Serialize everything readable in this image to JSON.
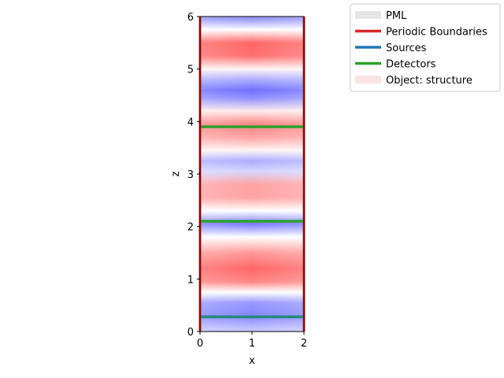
{
  "chart_data": {
    "type": "heatmap",
    "title": "",
    "xlabel": "x",
    "ylabel": "z",
    "xlim": [
      0,
      2
    ],
    "ylim": [
      0,
      6
    ],
    "x_ticks": [
      0,
      1,
      2
    ],
    "y_ticks": [
      0,
      1,
      2,
      3,
      4,
      5,
      6
    ],
    "grid": false,
    "legend_placement": "outside upper right",
    "field_colormap": {
      "negative": "#3333ff",
      "zero": "#ffffff",
      "positive": "#ff3333"
    },
    "field_profile": {
      "z": [
        0.05,
        0.3,
        0.55,
        0.75,
        0.95,
        1.2,
        1.5,
        1.8,
        2.05,
        2.3,
        2.55,
        2.8,
        3.05,
        3.25,
        3.45,
        3.7,
        3.95,
        4.2,
        4.45,
        4.6,
        4.8,
        5.0,
        5.25,
        5.5,
        5.75,
        5.95
      ],
      "value": [
        -0.3,
        -0.6,
        -0.5,
        0.0,
        0.6,
        0.75,
        0.5,
        0.0,
        -0.65,
        0.0,
        0.45,
        0.45,
        -0.2,
        -0.4,
        0.05,
        0.45,
        0.6,
        0.1,
        -0.55,
        -0.7,
        -0.4,
        0.05,
        0.7,
        0.75,
        0.0,
        -0.5
      ]
    },
    "boundaries": [
      {
        "kind": "Periodic Boundaries",
        "orientation": "vertical",
        "x": 0,
        "color": "#d62728"
      },
      {
        "kind": "Periodic Boundaries",
        "orientation": "vertical",
        "x": 2,
        "color": "#d62728"
      }
    ],
    "sources": [
      {
        "z": 0.28,
        "x_range": [
          0,
          2
        ],
        "color": "#1f77b4"
      }
    ],
    "detectors": [
      {
        "z": 0.28,
        "x_range": [
          0,
          2
        ],
        "color": "#2ca02c"
      },
      {
        "z": 2.1,
        "x_range": [
          0,
          2
        ],
        "color": "#2ca02c"
      },
      {
        "z": 3.9,
        "x_range": [
          0,
          2
        ],
        "color": "#2ca02c"
      }
    ],
    "legend": [
      {
        "label": "PML",
        "color": "#e5e5e5",
        "style": "patch"
      },
      {
        "label": "Periodic Boundaries",
        "color": "#d62728",
        "style": "line"
      },
      {
        "label": "Sources",
        "color": "#1f77b4",
        "style": "line"
      },
      {
        "label": "Detectors",
        "color": "#2ca02c",
        "style": "line"
      },
      {
        "label": "Object: structure",
        "color": "#fbe3e3",
        "style": "patch"
      }
    ]
  }
}
